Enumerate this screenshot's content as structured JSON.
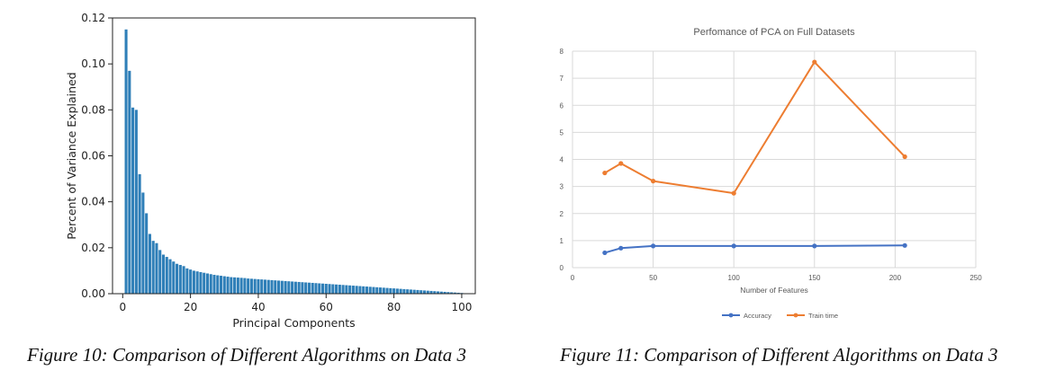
{
  "figures": [
    {
      "caption": "Figure 10: Comparison of Different Algorithms on Data 3"
    },
    {
      "caption": "Figure 11: Comparison of Different Algorithms on Data 3"
    }
  ],
  "chart_data": [
    {
      "type": "bar",
      "title": "",
      "xlabel": "Principal Components",
      "ylabel": "Percent of Variance Explained",
      "xlim": [
        -3,
        104
      ],
      "ylim": [
        0,
        0.12
      ],
      "xticks": [
        0,
        20,
        40,
        60,
        80,
        100
      ],
      "yticks": [
        0.0,
        0.02,
        0.04,
        0.06,
        0.08,
        0.1,
        0.12
      ],
      "ytick_labels": [
        "0.00",
        "0.02",
        "0.04",
        "0.06",
        "0.08",
        "0.10",
        "0.12"
      ],
      "grid": false,
      "color": "#2f7fb8",
      "x": [
        1,
        2,
        3,
        4,
        5,
        6,
        7,
        8,
        9,
        10,
        11,
        12,
        13,
        14,
        15,
        16,
        17,
        18,
        19,
        20,
        21,
        22,
        23,
        24,
        25,
        26,
        27,
        28,
        29,
        30,
        31,
        32,
        33,
        34,
        35,
        36,
        37,
        38,
        39,
        40,
        41,
        42,
        43,
        44,
        45,
        46,
        47,
        48,
        49,
        50,
        51,
        52,
        53,
        54,
        55,
        56,
        57,
        58,
        59,
        60,
        61,
        62,
        63,
        64,
        65,
        66,
        67,
        68,
        69,
        70,
        71,
        72,
        73,
        74,
        75,
        76,
        77,
        78,
        79,
        80,
        81,
        82,
        83,
        84,
        85,
        86,
        87,
        88,
        89,
        90,
        91,
        92,
        93,
        94,
        95,
        96,
        97,
        98,
        99,
        100
      ],
      "values": [
        0.115,
        0.097,
        0.081,
        0.08,
        0.052,
        0.044,
        0.035,
        0.026,
        0.023,
        0.022,
        0.019,
        0.017,
        0.016,
        0.015,
        0.014,
        0.013,
        0.0125,
        0.012,
        0.011,
        0.0105,
        0.01,
        0.0097,
        0.0094,
        0.0091,
        0.0088,
        0.0085,
        0.0082,
        0.008,
        0.0078,
        0.0076,
        0.0074,
        0.0072,
        0.0071,
        0.007,
        0.0069,
        0.0068,
        0.0066,
        0.0065,
        0.0064,
        0.0063,
        0.0062,
        0.0061,
        0.006,
        0.0059,
        0.0058,
        0.0057,
        0.0056,
        0.0055,
        0.0054,
        0.0053,
        0.0052,
        0.0051,
        0.005,
        0.0049,
        0.0048,
        0.0047,
        0.0046,
        0.0045,
        0.0044,
        0.0043,
        0.0042,
        0.0041,
        0.004,
        0.0039,
        0.0038,
        0.0037,
        0.0036,
        0.0035,
        0.0034,
        0.0033,
        0.0032,
        0.0031,
        0.003,
        0.0029,
        0.0028,
        0.0027,
        0.0026,
        0.0025,
        0.0024,
        0.0023,
        0.0022,
        0.0021,
        0.002,
        0.0019,
        0.0018,
        0.0017,
        0.0016,
        0.0015,
        0.0014,
        0.0013,
        0.0012,
        0.0011,
        0.001,
        0.0009,
        0.0008,
        0.0007,
        0.0006,
        0.0005,
        0.0004,
        0.0003
      ]
    },
    {
      "type": "line",
      "title": "Perfomance of PCA on Full Datasets",
      "xlabel": "Number of Features",
      "ylabel": "",
      "xlim": [
        0,
        250
      ],
      "ylim": [
        0,
        8
      ],
      "xticks": [
        0,
        50,
        100,
        150,
        200,
        250
      ],
      "yticks": [
        0,
        1,
        2,
        3,
        4,
        5,
        6,
        7,
        8
      ],
      "grid": true,
      "legend": "bottom",
      "series": [
        {
          "name": "Accuracy",
          "color": "#4472c4",
          "x": [
            20,
            30,
            50,
            100,
            150,
            206
          ],
          "values": [
            0.55,
            0.72,
            0.8,
            0.8,
            0.8,
            0.82
          ]
        },
        {
          "name": "Train time",
          "color": "#ed7d31",
          "x": [
            20,
            30,
            50,
            100,
            150,
            206
          ],
          "values": [
            3.5,
            3.85,
            3.2,
            2.75,
            7.6,
            4.1
          ]
        }
      ]
    }
  ]
}
